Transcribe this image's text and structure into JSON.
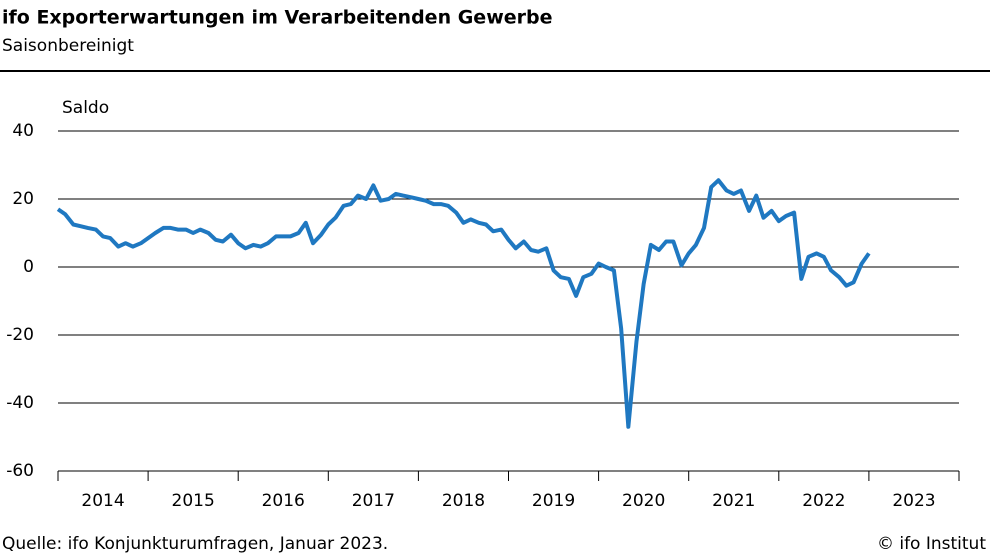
{
  "chart_data": {
    "type": "line",
    "title": "ifo Exporterwartungen im Verarbeitenden Gewerbe",
    "subtitle": "Saisonbereinigt",
    "y_axis_label": "Saldo",
    "source": "Quelle:  ifo Konjunkturumfragen,  Januar 2023.",
    "copyright": "© ifo Institut",
    "x": [
      2014,
      2014.08,
      2014.17,
      2014.25,
      2014.33,
      2014.42,
      2014.5,
      2014.58,
      2014.67,
      2014.75,
      2014.83,
      2014.92,
      2015,
      2015.08,
      2015.17,
      2015.25,
      2015.33,
      2015.42,
      2015.5,
      2015.58,
      2015.67,
      2015.75,
      2015.83,
      2015.92,
      2016,
      2016.08,
      2016.17,
      2016.25,
      2016.33,
      2016.42,
      2016.5,
      2016.58,
      2016.67,
      2016.75,
      2016.83,
      2016.92,
      2017,
      2017.08,
      2017.17,
      2017.25,
      2017.33,
      2017.42,
      2017.5,
      2017.58,
      2017.67,
      2017.75,
      2017.83,
      2017.92,
      2018,
      2018.08,
      2018.17,
      2018.25,
      2018.33,
      2018.42,
      2018.5,
      2018.58,
      2018.67,
      2018.75,
      2018.83,
      2018.92,
      2019,
      2019.08,
      2019.17,
      2019.25,
      2019.33,
      2019.42,
      2019.5,
      2019.58,
      2019.67,
      2019.75,
      2019.83,
      2019.92,
      2020,
      2020.08,
      2020.17,
      2020.25,
      2020.33,
      2020.42,
      2020.5,
      2020.58,
      2020.67,
      2020.75,
      2020.83,
      2020.92,
      2021,
      2021.08,
      2021.17,
      2021.25,
      2021.33,
      2021.42,
      2021.5,
      2021.58,
      2021.67,
      2021.75,
      2021.83,
      2021.92,
      2022,
      2022.08,
      2022.17,
      2022.25,
      2022.33,
      2022.42,
      2022.5,
      2022.58,
      2022.67,
      2022.75,
      2022.83,
      2022.92,
      2023
    ],
    "series": [
      {
        "color": "#1f78c1",
        "values": [
          17,
          15.5,
          12.5,
          12,
          11.5,
          11,
          9,
          8.5,
          6,
          7,
          6,
          7,
          8.5,
          10,
          11.5,
          11.5,
          11,
          11,
          10,
          11,
          10,
          8,
          7.5,
          9.5,
          7,
          5.5,
          6.5,
          6,
          7,
          9,
          9,
          9,
          10,
          13,
          7,
          9.5,
          12.5,
          14.5,
          18,
          18.5,
          21,
          20,
          24,
          19.5,
          20,
          21.5,
          21,
          20.5,
          20,
          19.5,
          18.5,
          18.5,
          18,
          16,
          13,
          14,
          13,
          12.5,
          10.5,
          11,
          8,
          5.5,
          7.5,
          5,
          4.5,
          5.5,
          -1,
          -3,
          -3.5,
          -8.5,
          -3,
          -2,
          1,
          0,
          -1,
          -18,
          -47,
          -22,
          -5,
          6.5,
          5,
          7.5,
          7.5,
          0.5,
          4,
          6.5,
          11.5,
          23.5,
          25.5,
          22.5,
          21.5,
          22.5,
          16.5,
          21,
          14.5,
          16.5,
          13.5,
          15,
          16,
          -3.5,
          3,
          4,
          3,
          -1,
          -3,
          -5.5,
          -4.5,
          1,
          4
        ]
      }
    ],
    "xlim": [
      2014,
      2024
    ],
    "xticks": [
      2014,
      2015,
      2016,
      2017,
      2018,
      2019,
      2020,
      2021,
      2022,
      2023
    ],
    "ylim": [
      -60,
      40
    ],
    "yticks": [
      -60,
      -40,
      -20,
      0,
      20,
      40
    ],
    "grid": true
  }
}
